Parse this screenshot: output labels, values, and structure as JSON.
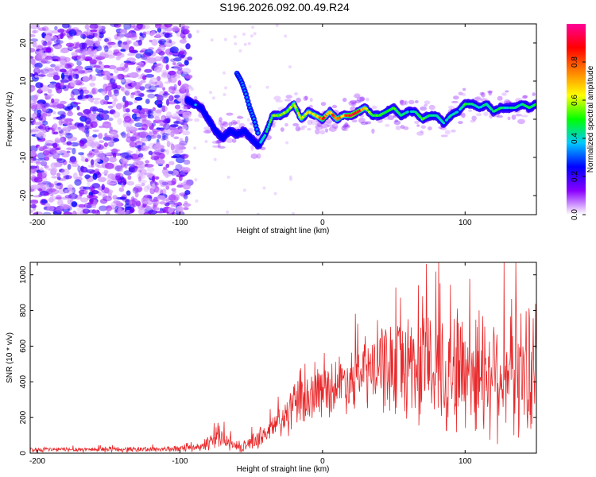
{
  "title": "S196.2026.092.00.49.R24",
  "chart_data": [
    {
      "type": "heatmap",
      "name": "spectrogram",
      "xlabel": "Height of straight line (km)",
      "ylabel": "Frequency (Hz)",
      "xlim": [
        -205,
        150
      ],
      "ylim": [
        -25,
        25
      ],
      "xticks": [
        -200,
        -100,
        0,
        100
      ],
      "yticks": [
        -20,
        -10,
        0,
        10,
        20
      ],
      "colorbar": {
        "label": "Normalized spectral amplitude",
        "range": [
          0,
          1
        ],
        "ticks": [
          "0.0",
          "0.2",
          "0.4",
          "0.6",
          "0.8"
        ],
        "colors": [
          "#ffffff",
          "#8a00ff",
          "#0000ff",
          "#00c8ff",
          "#00ff00",
          "#ffff00",
          "#ff8000",
          "#ff0000",
          "#ff0099"
        ]
      },
      "noise_region_x": [
        -205,
        -93
      ],
      "ridge": {
        "x": [
          -95,
          -90,
          -85,
          -80,
          -75,
          -70,
          -65,
          -60,
          -55,
          -50,
          -45,
          -40,
          -35,
          -30,
          -25,
          -20,
          -15,
          -10,
          -5,
          0,
          5,
          10,
          15,
          20,
          25,
          30,
          35,
          40,
          45,
          50,
          55,
          60,
          65,
          70,
          75,
          80,
          85,
          90,
          95,
          100,
          105,
          110,
          115,
          120,
          125,
          130,
          135,
          140,
          145,
          150
        ],
        "freq": [
          5,
          4,
          3,
          0,
          -3,
          -5,
          -3,
          -4,
          -3,
          -5,
          -7,
          -4,
          1,
          1,
          2,
          4,
          0,
          2,
          1,
          0,
          2,
          0,
          1,
          1,
          2,
          3,
          1,
          1,
          2,
          3,
          1,
          2,
          2,
          0,
          1,
          1,
          -1,
          1,
          2,
          4,
          4,
          3,
          4,
          2,
          3,
          3,
          3,
          4,
          3,
          4
        ],
        "amplitude": [
          0.3,
          0.35,
          0.3,
          0.3,
          0.25,
          0.35,
          0.3,
          0.3,
          0.3,
          0.35,
          0.35,
          0.4,
          0.5,
          0.6,
          0.55,
          0.6,
          0.6,
          0.6,
          0.65,
          0.85,
          0.7,
          0.8,
          0.65,
          0.95,
          0.95,
          0.6,
          0.5,
          0.5,
          0.45,
          0.5,
          0.45,
          0.4,
          0.4,
          0.5,
          0.45,
          0.45,
          0.4,
          0.4,
          0.4,
          0.5,
          0.45,
          0.35,
          0.45,
          0.4,
          0.45,
          0.4,
          0.4,
          0.4,
          0.45,
          0.45
        ]
      },
      "side_branch": {
        "x": [
          -60,
          -57,
          -54,
          -51,
          -48,
          -45
        ],
        "freq": [
          12,
          10,
          7,
          3,
          0,
          -4
        ]
      }
    },
    {
      "type": "line",
      "name": "snr",
      "xlabel": "Height of straight line (km)",
      "ylabel": "SNR (10 * v/v)",
      "xlim": [
        -205,
        150
      ],
      "ylim": [
        0,
        1070
      ],
      "xticks": [
        -200,
        -100,
        0,
        100
      ],
      "yticks": [
        0,
        200,
        400,
        600,
        800,
        1000
      ],
      "color": "#e8282a",
      "envelope": {
        "x": [
          -205,
          -120,
          -95,
          -85,
          -80,
          -72,
          -66,
          -58,
          -50,
          -40,
          -30,
          -22,
          -10,
          0,
          20,
          40,
          60,
          80,
          100,
          120,
          150
        ],
        "mean": [
          20,
          22,
          25,
          30,
          60,
          110,
          60,
          25,
          60,
          110,
          170,
          240,
          310,
          350,
          420,
          480,
          500,
          480,
          470,
          460,
          460
        ],
        "spread": [
          12,
          14,
          16,
          20,
          45,
          60,
          40,
          20,
          40,
          60,
          90,
          120,
          130,
          130,
          160,
          220,
          280,
          320,
          340,
          330,
          320
        ]
      }
    }
  ]
}
